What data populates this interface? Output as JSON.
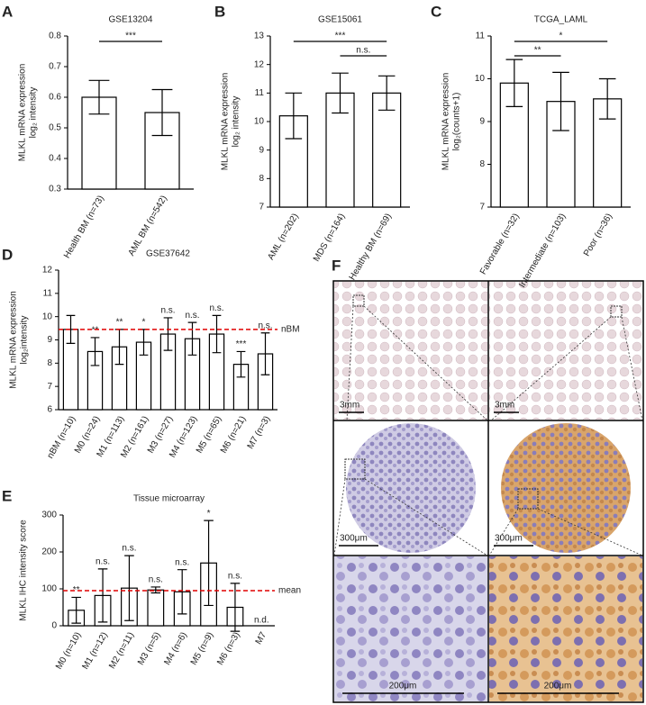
{
  "chart_data": [
    {
      "type": "bar",
      "panel": "A",
      "title": "GSE13204",
      "y_label": [
        "MLKL mRNA expression",
        "log₂ intensity"
      ],
      "categories": [
        "Health BM (n=73)",
        "AML BM (n=542)"
      ],
      "values": [
        0.6,
        0.55
      ],
      "errors": [
        0.055,
        0.075
      ],
      "ylim": [
        0.3,
        0.8
      ],
      "yticks": [
        0.3,
        0.4,
        0.5,
        0.6,
        0.7,
        0.8
      ],
      "color": "#ffffff",
      "brackets": [
        {
          "label": "***",
          "between": [
            0,
            1
          ]
        }
      ]
    },
    {
      "type": "bar",
      "panel": "B",
      "title": "GSE15061",
      "y_label": [
        "MLKL mRNA expression",
        "log₂ intensity"
      ],
      "categories": [
        "AML (n=202)",
        "MDS (n=164)",
        "Healthy BM (n=69)"
      ],
      "values": [
        10.2,
        11.0,
        11.0
      ],
      "errors": [
        0.8,
        0.7,
        0.6
      ],
      "ylim": [
        7,
        13
      ],
      "yticks": [
        7,
        8,
        9,
        10,
        11,
        12,
        13
      ],
      "color": "#ffffff",
      "brackets": [
        {
          "label": "***",
          "between": [
            0,
            2
          ]
        },
        {
          "label": "n.s.",
          "between": [
            1,
            2
          ]
        }
      ]
    },
    {
      "type": "bar",
      "panel": "C",
      "title": "TCGA_LAML",
      "y_label": [
        "MLKL mRNA expression",
        "log₂(counts+1)"
      ],
      "categories": [
        "Favorable (n=32)",
        "Intermediate (n=103)",
        "Poor (n=36)"
      ],
      "values": [
        9.9,
        9.47,
        9.53
      ],
      "errors": [
        0.55,
        0.68,
        0.47
      ],
      "ylim": [
        7,
        11
      ],
      "yticks": [
        7,
        8,
        9,
        10,
        11
      ],
      "color": "#ffffff",
      "brackets": [
        {
          "label": "*",
          "between": [
            0,
            2
          ]
        },
        {
          "label": "**",
          "between": [
            0,
            1
          ]
        }
      ]
    },
    {
      "type": "bar",
      "panel": "D",
      "title": "GSE37642",
      "y_label": [
        "MLKL mRNA expression",
        "log₂intensity"
      ],
      "categories": [
        "nBM (n=10)",
        "M0 (n=24)",
        "M1 (n=113)",
        "M2 (n=161)",
        "M3 (n=27)",
        "M4 (n=123)",
        "M5 (n=65)",
        "M6 (n=21)",
        "M7 (n=3)"
      ],
      "values": [
        9.45,
        8.5,
        8.7,
        8.9,
        9.25,
        9.05,
        9.25,
        7.95,
        8.4
      ],
      "errors": [
        0.6,
        0.6,
        0.75,
        0.55,
        0.7,
        0.7,
        0.8,
        0.55,
        0.9
      ],
      "bar_labels": [
        null,
        "**",
        "**",
        "*",
        "n.s.",
        "n.s.",
        "n.s.",
        "***",
        "n.s."
      ],
      "ylim": [
        6,
        12
      ],
      "yticks": [
        6,
        7,
        8,
        9,
        10,
        11,
        12
      ],
      "color": "#ffffff",
      "reference": {
        "value": 9.45,
        "label": "nBM",
        "color": "#e00000"
      }
    },
    {
      "type": "bar",
      "panel": "E",
      "title": "Tissue microarray",
      "y_label": [
        "MLKL IHC intensity score"
      ],
      "categories": [
        "M0 (n=10)",
        "M1 (n=12)",
        "M2 (n=11)",
        "M3 (n=5)",
        "M4 (n=6)",
        "M5 (n=9)",
        "M6 (n=3)",
        "M7"
      ],
      "values": [
        42,
        82,
        102,
        97,
        92,
        170,
        50,
        null
      ],
      "errors": [
        35,
        72,
        88,
        8,
        60,
        115,
        65,
        null
      ],
      "bar_labels": [
        "**",
        "n.s.",
        "n.s.",
        "n.s.",
        "n.s.",
        "*",
        "n.s.",
        "n.d."
      ],
      "ylim": [
        0,
        300
      ],
      "yticks": [
        0,
        100,
        200,
        300
      ],
      "color": "#ffffff",
      "reference": {
        "value": 95,
        "label": "mean",
        "color": "#e00000"
      }
    }
  ],
  "image_panel": {
    "panel": "F",
    "scale_bars": [
      "3mm",
      "3mm",
      "300μm",
      "300μm",
      "200μm",
      "200μm"
    ]
  }
}
